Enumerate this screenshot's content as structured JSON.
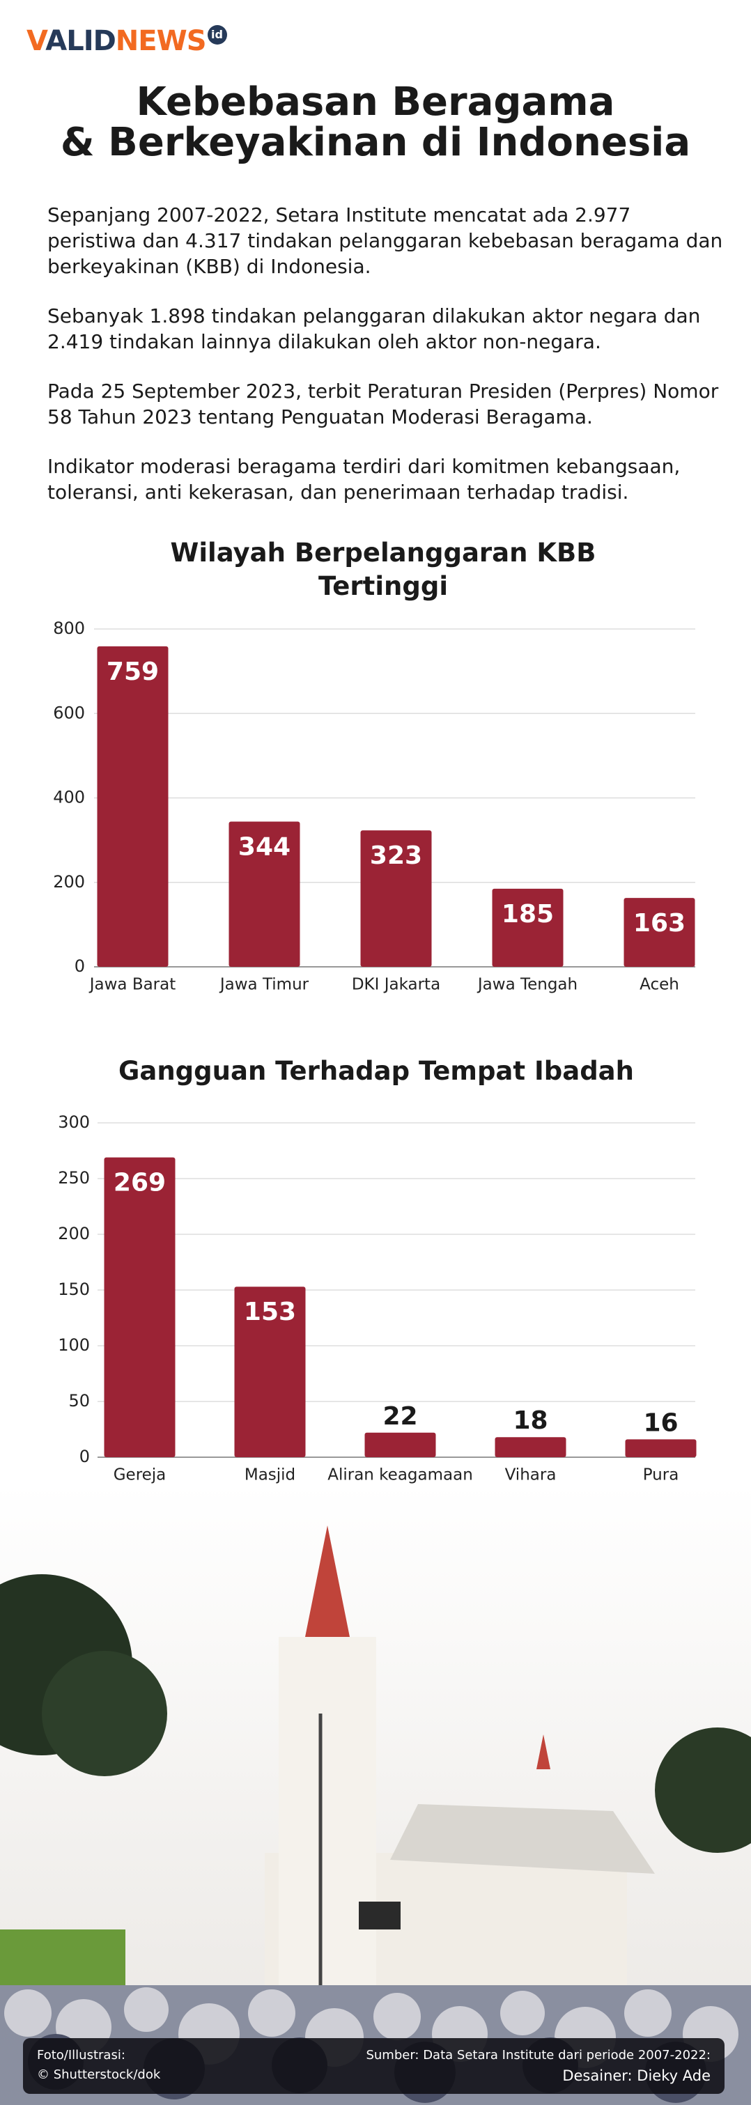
{
  "logo": {
    "part1": "V",
    "part2": "ALID",
    "part3": "NEWS",
    "badge": "id"
  },
  "header": {
    "title_line1": "Kebebasan Beragama",
    "title_line2": "& Berkeyakinan di Indonesia"
  },
  "paragraphs": [
    "Sepanjang 2007-2022, Setara Institute mencatat ada 2.977 peristiwa dan 4.317 tindakan pelanggaran kebebasan beragama dan berkeyakinan (KBB) di Indonesia.",
    "Sebanyak 1.898 tindakan pelanggaran dilakukan aktor negara dan 2.419 tindakan lainnya dilakukan oleh aktor non-negara.",
    "Pada 25 September 2023, terbit Peraturan Presiden (Perpres) Nomor 58 Tahun 2023 tentang Penguatan Moderasi Beragama.",
    "Indikator moderasi beragama terdiri dari komitmen kebangsaan, toleransi, anti kekerasan, dan penerimaan terhadap tradisi."
  ],
  "chart_data": [
    {
      "type": "bar",
      "title": "Wilayah Berpelanggaran KBB Tertinggi",
      "categories": [
        "Jawa Barat",
        "Jawa Timur",
        "DKI Jakarta",
        "Jawa Tengah",
        "Aceh"
      ],
      "values": [
        759,
        344,
        323,
        185,
        163
      ],
      "color": "#9b2335",
      "ylim": [
        0,
        800
      ],
      "yticks": [
        0,
        200,
        400,
        600,
        800
      ],
      "grid": true
    },
    {
      "type": "bar",
      "title": "Gangguan Terhadap Tempat Ibadah",
      "categories": [
        "Gereja",
        "Masjid",
        "Aliran keagamaan",
        "Vihara",
        "Pura"
      ],
      "values": [
        269,
        153,
        22,
        18,
        16
      ],
      "color": "#9b2335",
      "ylim": [
        0,
        300
      ],
      "yticks": [
        0,
        50,
        100,
        150,
        200,
        250,
        300
      ],
      "grid": true
    }
  ],
  "footer": {
    "photo_label": "Foto/Illustrasi:",
    "photo_credit": "© Shutterstock/dok",
    "source": "Sumber: Data Setara Institute dari periode 2007-2022:",
    "designer": "Desainer: Dieky Ade"
  }
}
